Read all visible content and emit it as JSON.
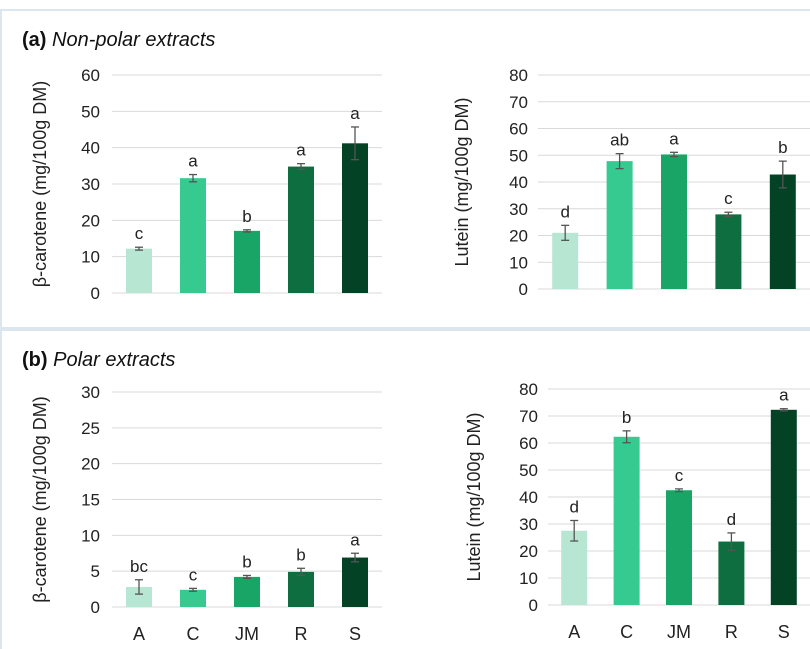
{
  "panels": {
    "a": {
      "label": "(a)",
      "title": "Non-polar extracts"
    },
    "b": {
      "label": "(b)",
      "title": "Polar extracts"
    }
  },
  "chart_data": [
    {
      "id": "a-beta",
      "type": "bar",
      "categories": [
        "A",
        "C",
        "JM",
        "R",
        "S"
      ],
      "values": [
        12.2,
        31.6,
        17.1,
        34.8,
        41.2
      ],
      "errors": [
        0.4,
        1.0,
        0.3,
        0.8,
        4.5
      ],
      "letters": [
        "c",
        "a",
        "b",
        "a",
        "a"
      ],
      "colors": [
        "#b7e6d2",
        "#36c990",
        "#18a565",
        "#0f6e40",
        "#044226"
      ],
      "ylabel": "β-carotene (mg/100g DM)",
      "yticks": [
        0,
        10,
        20,
        30,
        40,
        50,
        60
      ],
      "ylim": [
        0,
        60
      ],
      "grid": true,
      "show_xticklabels": false
    },
    {
      "id": "a-lutein",
      "type": "bar",
      "categories": [
        "A",
        "C",
        "JM",
        "R",
        "S"
      ],
      "values": [
        21.0,
        47.8,
        50.3,
        27.9,
        42.8
      ],
      "errors": [
        2.8,
        2.8,
        0.8,
        0.8,
        5.0
      ],
      "letters": [
        "d",
        "ab",
        "a",
        "c",
        "b"
      ],
      "colors": [
        "#b7e6d2",
        "#36c990",
        "#18a565",
        "#0f6e40",
        "#044226"
      ],
      "ylabel": "Lutein (mg/100g DM)",
      "yticks": [
        0,
        10,
        20,
        30,
        40,
        50,
        60,
        70,
        80
      ],
      "ylim": [
        0,
        80
      ],
      "grid": true,
      "show_xticklabels": false
    },
    {
      "id": "b-beta",
      "type": "bar",
      "categories": [
        "A",
        "C",
        "JM",
        "R",
        "S"
      ],
      "values": [
        2.8,
        2.4,
        4.2,
        4.9,
        6.9
      ],
      "errors": [
        1.0,
        0.2,
        0.2,
        0.5,
        0.6
      ],
      "letters": [
        "bc",
        "c",
        "b",
        "b",
        "a"
      ],
      "colors": [
        "#b7e6d2",
        "#36c990",
        "#18a565",
        "#0f6e40",
        "#044226"
      ],
      "ylabel": "β-carotene (mg/100g DM)",
      "yticks": [
        0,
        5,
        10,
        15,
        20,
        25,
        30
      ],
      "ylim": [
        0,
        30
      ],
      "grid": true,
      "show_xticklabels": true
    },
    {
      "id": "b-lutein",
      "type": "bar",
      "categories": [
        "A",
        "C",
        "JM",
        "R",
        "S"
      ],
      "values": [
        27.5,
        62.3,
        42.5,
        23.5,
        72.3
      ],
      "errors": [
        3.8,
        2.2,
        0.5,
        3.2,
        0.4
      ],
      "letters": [
        "d",
        "b",
        "c",
        "d",
        "a"
      ],
      "colors": [
        "#b7e6d2",
        "#36c990",
        "#18a565",
        "#0f6e40",
        "#044226"
      ],
      "ylabel": "Lutein (mg/100g DM)",
      "yticks": [
        0,
        10,
        20,
        30,
        40,
        50,
        60,
        70,
        80
      ],
      "ylim": [
        0,
        80
      ],
      "grid": true,
      "show_xticklabels": true
    }
  ]
}
